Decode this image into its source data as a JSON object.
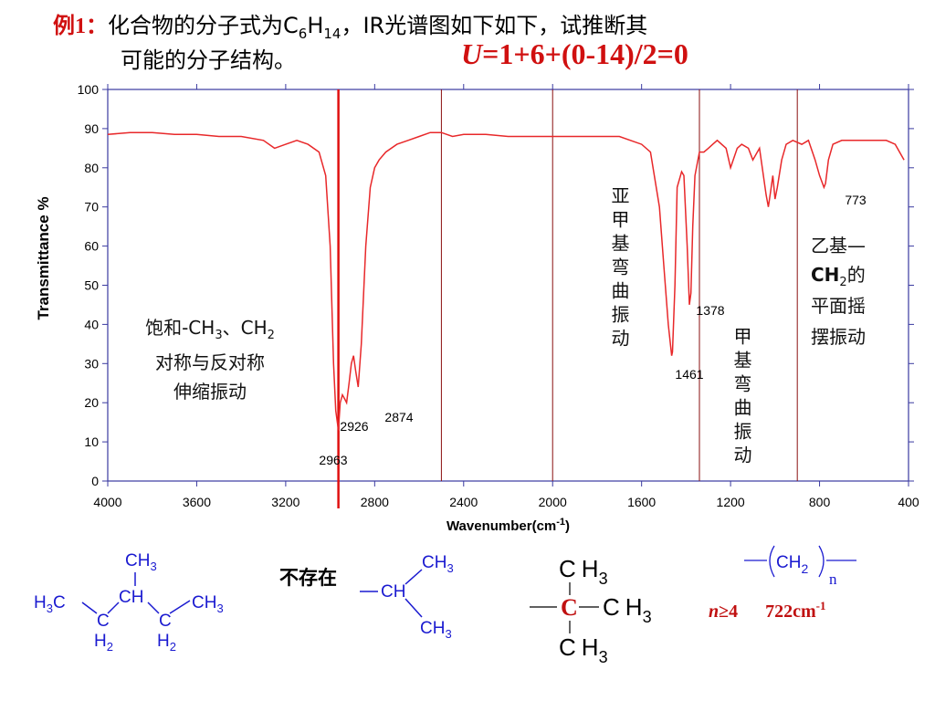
{
  "header": {
    "label": "例1：",
    "t1": "化合物的分子式为C",
    "s1": "6",
    "t2": "H",
    "s2": "14",
    "t3": "，IR光谱图如下如下，试推断其",
    "line2": "可能的分子结构。"
  },
  "formula": {
    "u": "U",
    "rest": "=1+6+(0-14)/2=0"
  },
  "chart_data": {
    "type": "line",
    "x_label": "Wavenumber(cm",
    "x_label_sup": "-1",
    "x_label_end": ")",
    "y_label": "Transmittance %",
    "color": "#e8282a",
    "x": [
      4000,
      3900,
      3800,
      3700,
      3600,
      3500,
      3400,
      3300,
      3250,
      3200,
      3150,
      3100,
      3050,
      3020,
      3000,
      2985,
      2975,
      2963,
      2955,
      2945,
      2935,
      2926,
      2915,
      2905,
      2895,
      2885,
      2874,
      2860,
      2840,
      2820,
      2800,
      2780,
      2750,
      2700,
      2650,
      2600,
      2550,
      2500,
      2450,
      2400,
      2300,
      2200,
      2100,
      2000,
      1900,
      1800,
      1700,
      1650,
      1600,
      1560,
      1520,
      1500,
      1480,
      1465,
      1461,
      1450,
      1440,
      1420,
      1410,
      1395,
      1385,
      1378,
      1370,
      1360,
      1340,
      1320,
      1300,
      1280,
      1260,
      1220,
      1200,
      1170,
      1150,
      1120,
      1100,
      1070,
      1040,
      1030,
      1020,
      1010,
      1000,
      990,
      970,
      950,
      920,
      880,
      850,
      820,
      800,
      780,
      773,
      760,
      740,
      700,
      600,
      500,
      460,
      420
    ],
    "values": [
      88.5,
      89,
      89,
      88.5,
      88.5,
      88,
      88,
      87,
      85,
      86,
      87,
      86,
      84,
      78,
      60,
      30,
      18,
      13,
      20,
      22,
      21,
      20,
      25,
      30,
      32,
      28,
      24,
      35,
      60,
      75,
      80,
      82,
      84,
      86,
      87,
      88,
      89,
      89,
      88,
      88.5,
      88.5,
      88,
      88,
      88,
      88,
      88,
      88,
      87,
      86,
      84,
      70,
      55,
      40,
      32,
      33,
      50,
      75,
      79,
      78,
      60,
      45,
      48,
      65,
      78,
      84,
      84,
      85,
      86,
      87,
      85,
      80,
      85,
      86,
      85,
      82,
      85,
      73,
      70,
      74,
      78,
      72,
      75,
      82,
      86,
      87,
      86,
      87,
      82,
      78,
      75,
      76,
      82,
      86,
      87,
      87,
      87,
      86,
      82
    ],
    "xlim": [
      4000,
      400
    ],
    "ylim": [
      0,
      100
    ],
    "xticks": [
      4000,
      3600,
      3200,
      2800,
      2400,
      2000,
      1600,
      1200,
      800,
      400
    ],
    "yticks": [
      0,
      10,
      20,
      30,
      40,
      50,
      60,
      70,
      80,
      90,
      100
    ],
    "reference_lines": [
      2963,
      2500,
      2000,
      1340,
      900
    ],
    "peak_labels": [
      2963,
      2926,
      2874,
      1461,
      1378,
      773
    ],
    "annotations": {
      "stretch": [
        "饱和-CH",
        "3",
        "、CH",
        "2",
        "对称与反对称",
        "伸缩振动"
      ],
      "methylene": "亚甲基弯曲振动",
      "methyl": "甲基弯曲振动",
      "rocking": [
        "乙基—",
        "CH",
        "2",
        "的",
        "平面摇",
        "摆振动"
      ]
    }
  },
  "structures": {
    "s1": [
      "CH",
      "3",
      "H",
      "3",
      "C",
      "CH",
      "CH",
      "3",
      "C",
      "H",
      "2",
      "C",
      "H",
      "2"
    ],
    "s2": [
      "不存在",
      "CH",
      "3",
      "CH",
      "CH",
      "3"
    ],
    "s3": [
      "C",
      "H",
      "3",
      "C",
      "C",
      "H",
      "3",
      "C",
      "H",
      "3"
    ],
    "s4": [
      "CH",
      "2",
      "n",
      "n",
      "≥4",
      "722cm",
      "-1"
    ]
  }
}
